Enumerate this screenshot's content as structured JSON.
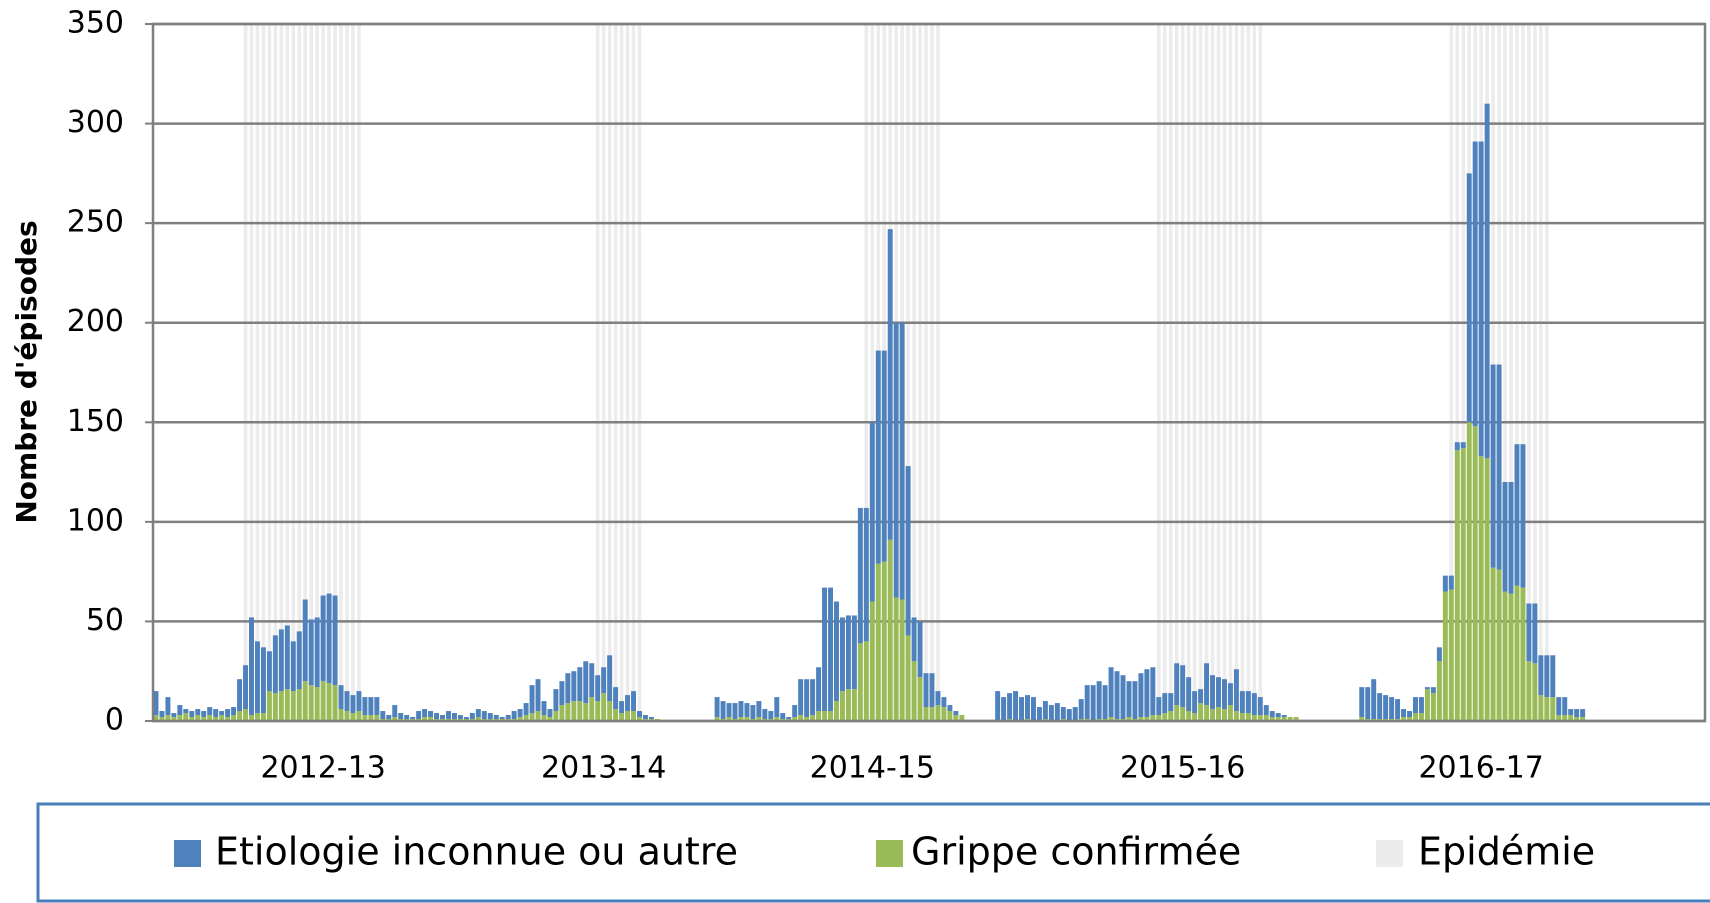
{
  "chart_data": {
    "type": "bar",
    "stacked": true,
    "ylabel": "Nombre d'épisodes",
    "ylim": [
      0,
      350
    ],
    "yticks": [
      0,
      50,
      100,
      150,
      200,
      250,
      300,
      350
    ],
    "grid": true,
    "categories": [
      null,
      null,
      null,
      null,
      null,
      null,
      null,
      null,
      null,
      null,
      null,
      null,
      null,
      null,
      null,
      null,
      null,
      null,
      null,
      null,
      null,
      null,
      null,
      null,
      null,
      null,
      null,
      null,
      "2012-13",
      null,
      null,
      null,
      null,
      null,
      null,
      null,
      null,
      null,
      null,
      null,
      null,
      null,
      null,
      null,
      null,
      null,
      null,
      null,
      null,
      null,
      null,
      null,
      null,
      null,
      null,
      null,
      null,
      null,
      null,
      null,
      null,
      null,
      null,
      null,
      null,
      null,
      null,
      null,
      null,
      null,
      null,
      null,
      null,
      null,
      null,
      "2013-14",
      null,
      null,
      null,
      null,
      null,
      null,
      null,
      null,
      null,
      null,
      null,
      null,
      null,
      null,
      null,
      null,
      null,
      null,
      null,
      null,
      null,
      null,
      null,
      null,
      null,
      null,
      null,
      null,
      null,
      null,
      null,
      null,
      null,
      null,
      null,
      null,
      null,
      null,
      null,
      null,
      null,
      null,
      null,
      null,
      "2014-15",
      null,
      null,
      null,
      null,
      null,
      null,
      null,
      null,
      null,
      null,
      null,
      null,
      null,
      null,
      null,
      null,
      null,
      null,
      null,
      null,
      null,
      null,
      null,
      null,
      null,
      null,
      null,
      null,
      null,
      null,
      null,
      null,
      null,
      null,
      null,
      null,
      null,
      null,
      null,
      null,
      null,
      null,
      null,
      null,
      null,
      null,
      null,
      null,
      null,
      null,
      null,
      "2015-16",
      null,
      null,
      null,
      null,
      null,
      null,
      null,
      null,
      null,
      null,
      null,
      null,
      null,
      null,
      null,
      null,
      null,
      null,
      null,
      null,
      null,
      null,
      null,
      null,
      null,
      null,
      null,
      null,
      null,
      null,
      null,
      null,
      null,
      null,
      null,
      null,
      null,
      null,
      null,
      null,
      null,
      null,
      null,
      null,
      null,
      null,
      null,
      null,
      null,
      "2016-17",
      null,
      null,
      null,
      null,
      null,
      null,
      null,
      null,
      null,
      null,
      null,
      null,
      null,
      null,
      null,
      null,
      null,
      null,
      null,
      null,
      null,
      null,
      null,
      null,
      null,
      null,
      null,
      null,
      null,
      null,
      null,
      null,
      null,
      null,
      null,
      null,
      null
    ],
    "series": [
      {
        "name": "Etiologie inconnue ou autre",
        "color": "#4f81bd",
        "values": [
          12,
          3,
          9,
          2,
          5,
          2,
          3,
          3,
          3,
          4,
          4,
          2,
          4,
          4,
          16,
          22,
          49,
          36,
          33,
          20,
          29,
          31,
          32,
          25,
          29,
          41,
          33,
          35,
          43,
          45,
          45,
          12,
          10,
          9,
          10,
          9,
          9,
          9,
          4,
          2,
          6,
          3,
          2,
          1,
          4,
          4,
          3,
          3,
          2,
          4,
          3,
          2,
          1,
          3,
          4,
          4,
          3,
          2,
          1,
          2,
          4,
          4,
          6,
          14,
          16,
          7,
          4,
          11,
          12,
          15,
          15,
          17,
          21,
          17,
          13,
          13,
          23,
          11,
          6,
          8,
          10,
          3,
          2,
          1,
          0,
          null,
          null,
          null,
          null,
          null,
          null,
          null,
          null,
          null,
          10,
          9,
          7,
          8,
          8,
          7,
          7,
          8,
          5,
          4,
          10,
          3,
          1,
          6,
          18,
          19,
          18,
          22,
          62,
          62,
          50,
          37,
          37,
          37,
          68,
          67,
          90,
          107,
          106,
          156,
          138,
          139,
          85,
          22,
          28,
          17,
          17,
          7,
          5,
          3,
          2,
          0,
          null,
          null,
          null,
          null,
          null,
          15,
          12,
          13,
          15,
          12,
          12,
          12,
          7,
          9,
          8,
          9,
          6,
          6,
          7,
          10,
          17,
          18,
          19,
          17,
          25,
          24,
          22,
          18,
          19,
          22,
          24,
          24,
          9,
          10,
          9,
          21,
          21,
          17,
          11,
          7,
          21,
          17,
          15,
          15,
          11,
          21,
          11,
          11,
          11,
          9,
          5,
          3,
          2,
          1,
          0,
          0,
          null,
          null,
          null,
          null,
          null,
          null,
          null,
          null,
          null,
          null,
          15,
          16,
          20,
          13,
          12,
          11,
          10,
          4,
          3,
          8,
          8,
          1,
          3,
          7,
          8,
          7,
          4,
          3,
          125,
          143,
          158,
          178,
          102,
          103,
          55,
          56,
          71,
          72,
          29,
          30,
          20,
          21,
          21,
          9,
          9,
          3,
          4,
          4,
          null,
          null,
          null,
          null,
          null,
          null,
          null,
          null,
          null,
          null,
          null,
          null,
          null,
          null,
          null,
          null,
          null,
          null,
          null,
          null
        ]
      },
      {
        "name": "Grippe confirmée",
        "color": "#9bbb59",
        "values": [
          3,
          2,
          3,
          2,
          3,
          4,
          2,
          3,
          2,
          3,
          2,
          3,
          2,
          3,
          5,
          6,
          3,
          4,
          4,
          15,
          14,
          15,
          16,
          15,
          16,
          20,
          18,
          17,
          20,
          19,
          18,
          6,
          5,
          4,
          5,
          3,
          3,
          3,
          1,
          1,
          2,
          1,
          1,
          1,
          1,
          2,
          2,
          1,
          1,
          1,
          1,
          1,
          1,
          1,
          2,
          1,
          1,
          1,
          1,
          1,
          1,
          2,
          3,
          4,
          5,
          3,
          2,
          5,
          8,
          9,
          10,
          10,
          9,
          12,
          10,
          14,
          10,
          6,
          4,
          5,
          5,
          2,
          1,
          1,
          1,
          null,
          null,
          null,
          null,
          null,
          null,
          null,
          null,
          null,
          2,
          1,
          2,
          1,
          2,
          2,
          1,
          2,
          1,
          1,
          2,
          1,
          1,
          2,
          3,
          2,
          3,
          5,
          5,
          5,
          10,
          15,
          16,
          16,
          39,
          40,
          60,
          79,
          80,
          91,
          62,
          61,
          43,
          30,
          22,
          7,
          7,
          8,
          7,
          5,
          3,
          3,
          null,
          null,
          null,
          null,
          null,
          0,
          0,
          1,
          0,
          0,
          1,
          0,
          0,
          1,
          0,
          0,
          1,
          0,
          0,
          1,
          1,
          0,
          1,
          1,
          2,
          1,
          1,
          2,
          1,
          2,
          2,
          3,
          3,
          4,
          5,
          8,
          7,
          5,
          4,
          9,
          8,
          6,
          7,
          6,
          8,
          5,
          4,
          4,
          3,
          3,
          3,
          2,
          2,
          2,
          2,
          2,
          null,
          null,
          null,
          null,
          null,
          null,
          null,
          null,
          null,
          null,
          2,
          1,
          1,
          1,
          1,
          1,
          1,
          2,
          2,
          4,
          4,
          16,
          14,
          30,
          65,
          66,
          136,
          137,
          150,
          148,
          133,
          132,
          77,
          76,
          65,
          64,
          68,
          67,
          30,
          29,
          13,
          12,
          12,
          3,
          3,
          3,
          2,
          2,
          null,
          null,
          null,
          null,
          null,
          null,
          null,
          null,
          null,
          null,
          null,
          null,
          null,
          null,
          null,
          null,
          null,
          null,
          null,
          null
        ]
      },
      {
        "name": "Epidémie",
        "color": "#ececec",
        "kind": "background",
        "values": [
          null,
          null,
          null,
          null,
          null,
          null,
          null,
          null,
          null,
          null,
          null,
          null,
          null,
          null,
          null,
          350,
          350,
          350,
          350,
          350,
          350,
          350,
          350,
          350,
          350,
          350,
          350,
          350,
          350,
          350,
          350,
          350,
          350,
          350,
          350,
          null,
          null,
          null,
          null,
          null,
          null,
          null,
          null,
          null,
          null,
          null,
          null,
          null,
          null,
          null,
          null,
          null,
          null,
          null,
          null,
          null,
          null,
          null,
          null,
          null,
          null,
          null,
          null,
          null,
          null,
          null,
          null,
          null,
          null,
          null,
          null,
          null,
          null,
          null,
          350,
          350,
          350,
          350,
          350,
          350,
          350,
          350,
          null,
          null,
          null,
          null,
          null,
          null,
          null,
          null,
          null,
          null,
          null,
          null,
          null,
          null,
          null,
          null,
          null,
          null,
          null,
          null,
          null,
          null,
          null,
          null,
          null,
          null,
          null,
          null,
          null,
          null,
          null,
          null,
          null,
          null,
          null,
          null,
          null,
          350,
          350,
          350,
          350,
          350,
          350,
          350,
          350,
          350,
          350,
          350,
          350,
          350,
          null,
          null,
          null,
          null,
          null,
          null,
          null,
          null,
          null,
          null,
          null,
          null,
          null,
          null,
          null,
          null,
          null,
          null,
          null,
          null,
          null,
          null,
          null,
          null,
          null,
          null,
          null,
          null,
          null,
          null,
          null,
          null,
          null,
          null,
          null,
          null,
          350,
          350,
          350,
          350,
          350,
          350,
          350,
          350,
          350,
          350,
          350,
          350,
          350,
          350,
          350,
          350,
          350,
          350,
          null,
          null,
          null,
          null,
          null,
          null,
          null,
          null,
          null,
          null,
          null,
          null,
          null,
          null,
          null,
          null,
          null,
          null,
          null,
          null,
          null,
          null,
          null,
          null,
          null,
          null,
          null,
          null,
          null,
          null,
          null,
          350,
          350,
          350,
          350,
          350,
          350,
          350,
          350,
          350,
          350,
          350,
          350,
          350,
          350,
          350,
          350,
          350,
          null,
          null,
          null,
          null,
          null,
          null,
          null,
          null,
          null,
          null,
          null,
          null,
          null,
          null,
          null,
          null,
          null,
          null,
          null,
          null,
          null,
          null,
          null,
          null,
          null,
          null
        ]
      }
    ]
  }
}
